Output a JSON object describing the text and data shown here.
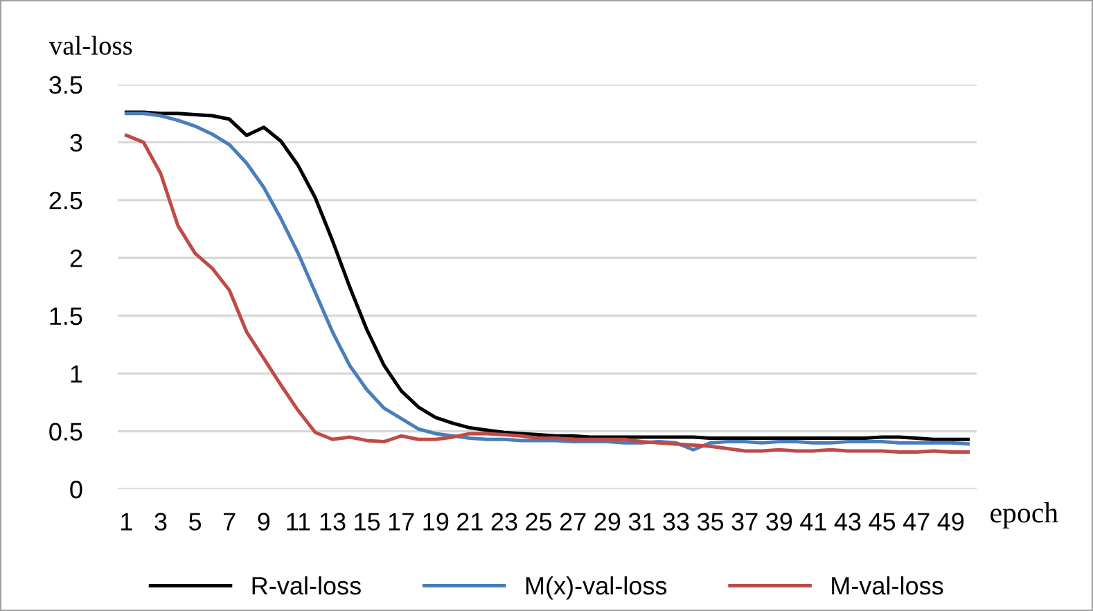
{
  "chart_data": {
    "type": "line",
    "ylabel": "val-loss",
    "xlabel": "epoch",
    "categories": [
      "1",
      null,
      "3",
      null,
      "5",
      null,
      "7",
      null,
      "9",
      null,
      "11",
      null,
      "13",
      null,
      "15",
      null,
      "17",
      null,
      "19",
      null,
      "21",
      null,
      "23",
      null,
      "25",
      null,
      "27",
      null,
      "29",
      null,
      "31",
      null,
      "33",
      null,
      "35",
      null,
      "37",
      null,
      "39",
      null,
      "41",
      null,
      "43",
      null,
      "45",
      null,
      "47",
      null,
      "49",
      null
    ],
    "series": [
      {
        "name": "R-val-loss",
        "color": "#000000",
        "values": [
          3.26,
          3.26,
          3.25,
          3.25,
          3.24,
          3.23,
          3.2,
          3.06,
          3.13,
          3.01,
          2.8,
          2.52,
          2.15,
          1.75,
          1.38,
          1.07,
          0.85,
          0.71,
          0.62,
          0.57,
          0.53,
          0.51,
          0.49,
          0.48,
          0.47,
          0.46,
          0.46,
          0.45,
          0.45,
          0.45,
          0.45,
          0.45,
          0.45,
          0.45,
          0.44,
          0.44,
          0.44,
          0.44,
          0.44,
          0.44,
          0.44,
          0.44,
          0.44,
          0.44,
          0.45,
          0.45,
          0.44,
          0.43,
          0.43,
          0.43
        ]
      },
      {
        "name": "M(x)-val-loss",
        "color": "#4a7ebb",
        "values": [
          3.25,
          3.25,
          3.23,
          3.19,
          3.14,
          3.07,
          2.98,
          2.82,
          2.61,
          2.34,
          2.04,
          1.7,
          1.36,
          1.07,
          0.86,
          0.7,
          0.61,
          0.52,
          0.48,
          0.46,
          0.44,
          0.43,
          0.43,
          0.42,
          0.42,
          0.42,
          0.41,
          0.41,
          0.41,
          0.4,
          0.4,
          0.41,
          0.4,
          0.34,
          0.4,
          0.41,
          0.41,
          0.4,
          0.41,
          0.41,
          0.4,
          0.4,
          0.41,
          0.41,
          0.41,
          0.4,
          0.4,
          0.4,
          0.4,
          0.39
        ]
      },
      {
        "name": "M-val-loss",
        "color": "#be4b48",
        "values": [
          3.06,
          3.0,
          2.73,
          2.28,
          2.04,
          1.91,
          1.72,
          1.36,
          1.13,
          0.9,
          0.68,
          0.49,
          0.43,
          0.45,
          0.42,
          0.41,
          0.46,
          0.43,
          0.43,
          0.45,
          0.48,
          0.48,
          0.47,
          0.46,
          0.44,
          0.44,
          0.43,
          0.43,
          0.43,
          0.43,
          0.41,
          0.4,
          0.39,
          0.38,
          0.37,
          0.35,
          0.33,
          0.33,
          0.34,
          0.33,
          0.33,
          0.34,
          0.33,
          0.33,
          0.33,
          0.32,
          0.32,
          0.33,
          0.32,
          0.32
        ]
      }
    ],
    "ylim": [
      0,
      3.5
    ],
    "yticks": [
      0,
      0.5,
      1,
      1.5,
      2,
      2.5,
      3,
      3.5
    ],
    "grid": "y",
    "legend": "bottom",
    "marker": "none",
    "line_style": "solid"
  }
}
